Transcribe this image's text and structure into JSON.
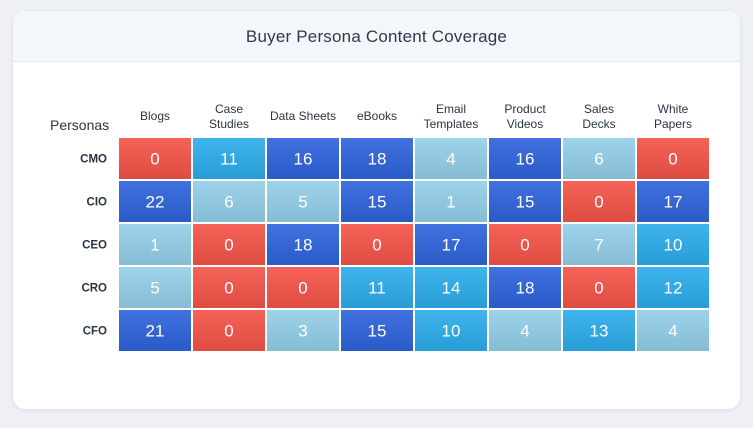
{
  "header": {
    "title": "Buyer Persona Content Coverage"
  },
  "chart_data": {
    "type": "heatmap",
    "title": "Buyer Persona Content Coverage",
    "ylabel": "Personas",
    "xlabel": "",
    "categories": [
      "Blogs",
      "Case Studies",
      "Data Sheets",
      "eBooks",
      "Email Templates",
      "Product Videos",
      "Sales Decks",
      "White Papers"
    ],
    "x_tick_labels": [
      [
        "Blogs"
      ],
      [
        "Case",
        "Studies"
      ],
      [
        "Data Sheets"
      ],
      [
        "eBooks"
      ],
      [
        "Email",
        "Templates"
      ],
      [
        "Product",
        "Videos"
      ],
      [
        "Sales",
        "Decks"
      ],
      [
        "White",
        "Papers"
      ]
    ],
    "rows": [
      "CMO",
      "CIO",
      "CEO",
      "CRO",
      "CFO"
    ],
    "values": [
      [
        0,
        11,
        16,
        18,
        4,
        16,
        6,
        0
      ],
      [
        22,
        6,
        5,
        15,
        1,
        15,
        0,
        17
      ],
      [
        1,
        0,
        18,
        0,
        17,
        0,
        7,
        10
      ],
      [
        5,
        0,
        0,
        11,
        14,
        18,
        0,
        12
      ],
      [
        21,
        0,
        3,
        15,
        10,
        4,
        13,
        4
      ]
    ],
    "colors": {
      "zero": "#e8554b",
      "low": "#8fc6de",
      "mid": "#32a6df",
      "high": "#3364d1",
      "grid_line": "#ffffff",
      "label_text": "#ffffff",
      "axis_text": "#2a3442"
    },
    "thresholds": {
      "low_max": 9,
      "mid_max": 14
    },
    "legend": "none",
    "grid": false
  }
}
